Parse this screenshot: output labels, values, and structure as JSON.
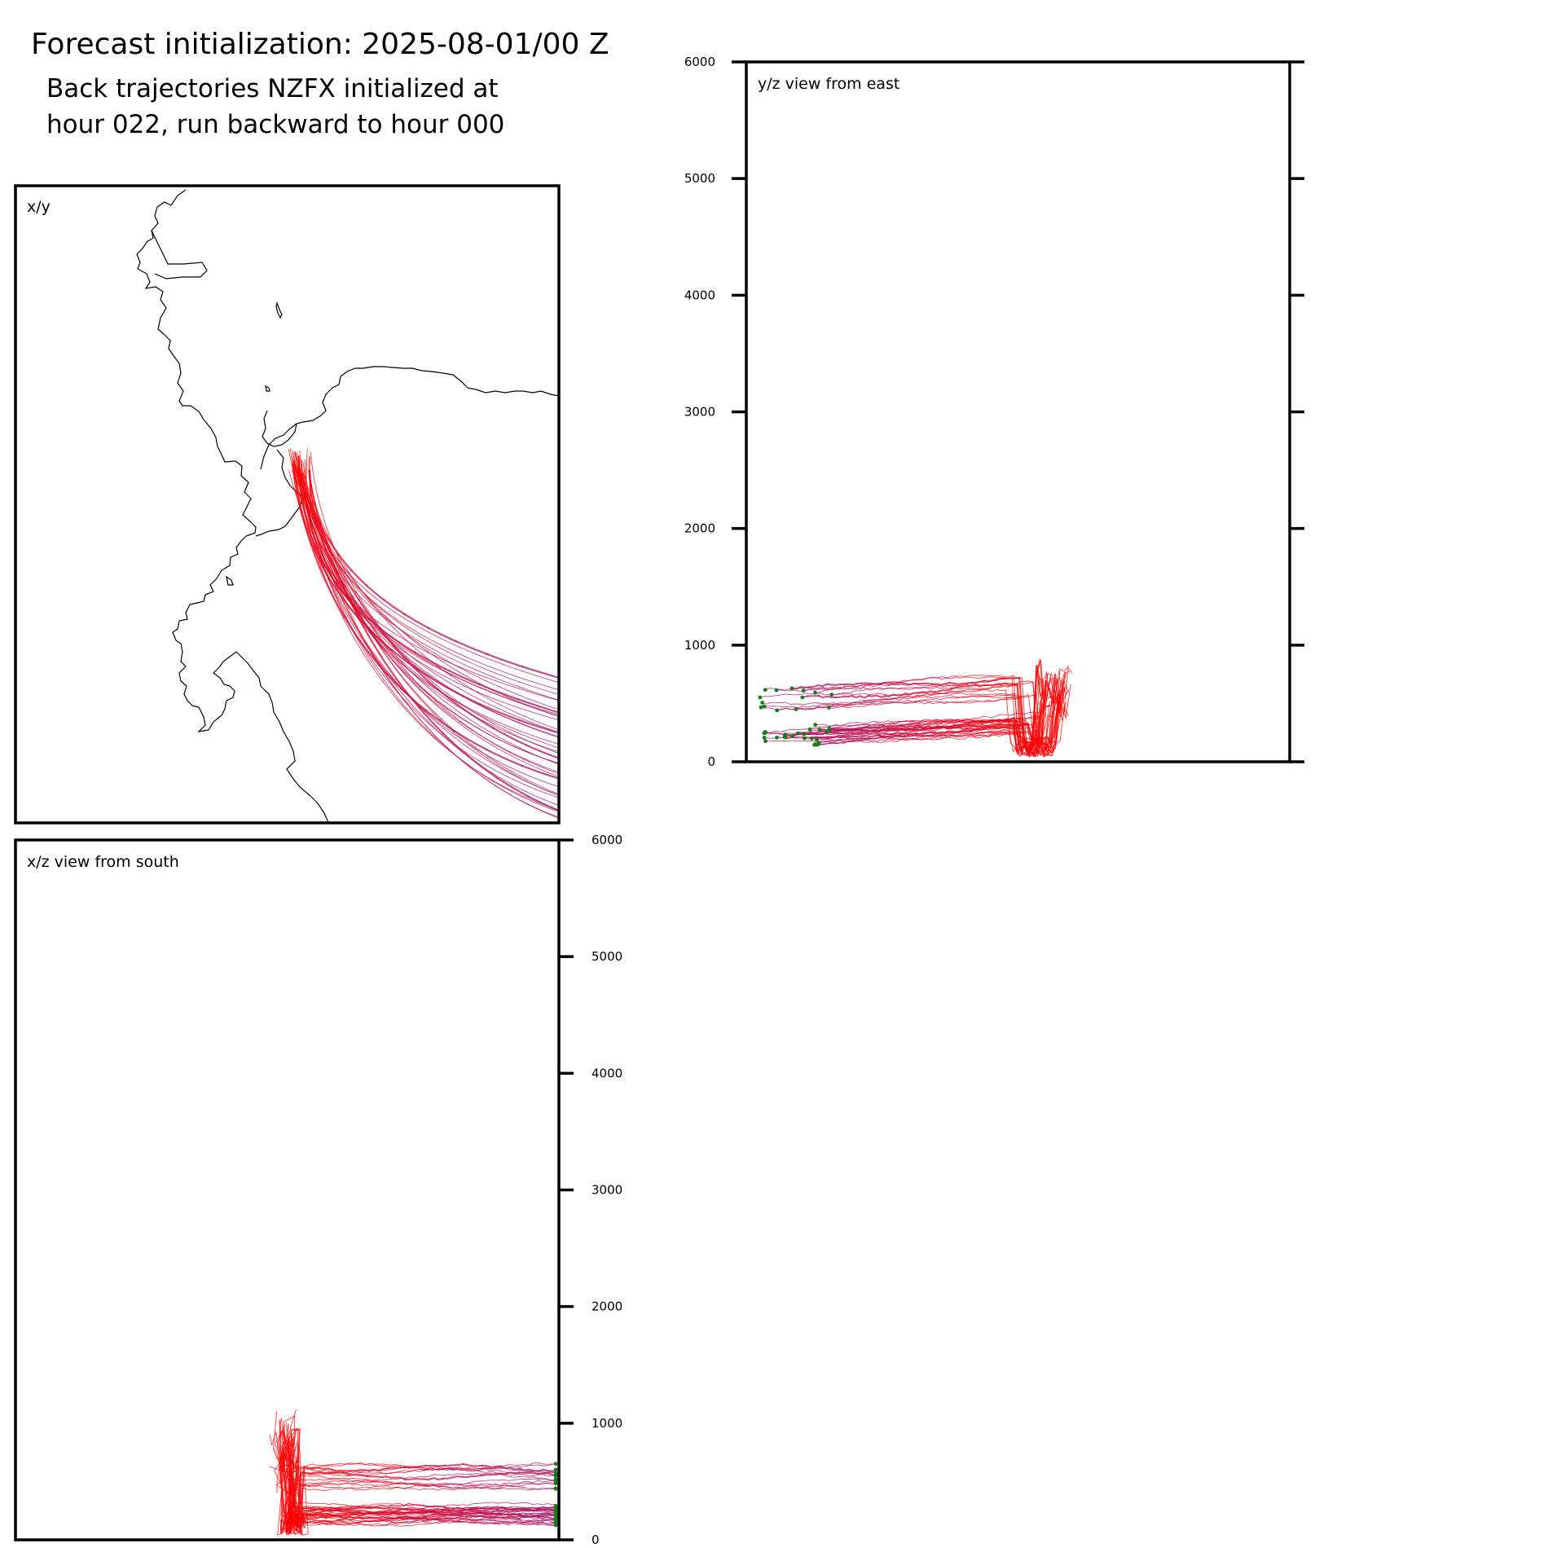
{
  "figure": {
    "title": "Forecast initialization: 2025-08-01/00 Z",
    "subtitle_lines": [
      "Back trajectories NZFX initialized at",
      "hour 022, run backward to hour 000"
    ]
  },
  "colors": {
    "trajectory_start": "#ff0000",
    "trajectory_end": "#a0176e",
    "endpoint_marker": "#1a7a1a",
    "coastline": "#000000",
    "frame": "#000000"
  },
  "chart_data": [
    {
      "type": "line",
      "panel": "x/y",
      "label": "x/y",
      "features": [
        "coastline",
        "trajectories",
        "endpoint-markers"
      ],
      "series_count": 40,
      "color_by": "trajectory hour (red at hour 022, purple at hour 000)"
    },
    {
      "type": "line",
      "panel": "y/z",
      "label": "y/z view from east",
      "ylim": [
        0,
        6000
      ],
      "yticks": [
        "0",
        "1000",
        "2000",
        "3000",
        "4000",
        "5000",
        "6000"
      ],
      "ytick_position": "left",
      "series_count": 40
    },
    {
      "type": "line",
      "panel": "x/z",
      "label": "x/z view from south",
      "ylim": [
        0,
        6000
      ],
      "yticks": [
        "0",
        "1000",
        "2000",
        "3000",
        "4000",
        "5000",
        "6000"
      ],
      "ytick_position": "right",
      "series_count": 40
    }
  ]
}
